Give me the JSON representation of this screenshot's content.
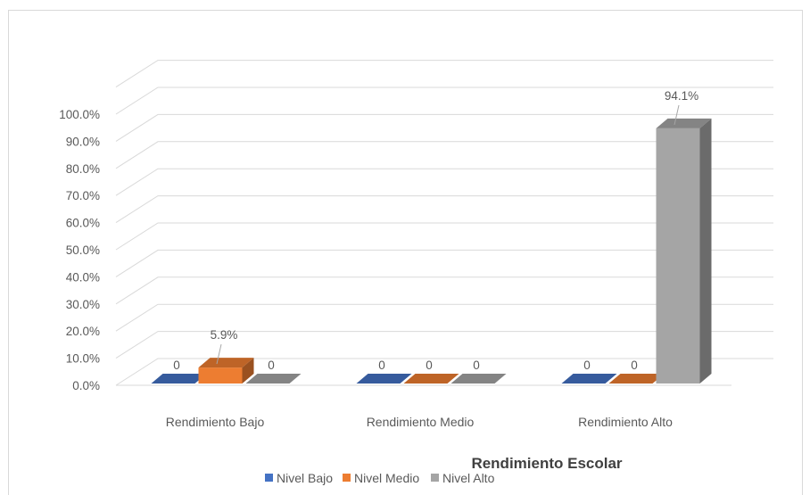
{
  "chart_data": {
    "type": "bar",
    "categories": [
      "Rendimiento Bajo",
      "Rendimiento Medio",
      "Rendimiento Alto"
    ],
    "series": [
      {
        "name": "Nivel Bajo",
        "values": [
          0,
          0,
          0
        ],
        "labels": [
          "0",
          "0",
          "0"
        ],
        "color": "#4472C4"
      },
      {
        "name": "Nivel Medio",
        "values": [
          5.9,
          0,
          0
        ],
        "labels": [
          "5.9%",
          "0",
          "0"
        ],
        "color": "#ED7D31"
      },
      {
        "name": "Nivel Alto",
        "values": [
          0,
          0,
          94.1
        ],
        "labels": [
          "0",
          "0",
          "94.1%"
        ],
        "color": "#A5A5A5"
      }
    ],
    "y_ticks": [
      "0.0%",
      "10.0%",
      "20.0%",
      "30.0%",
      "40.0%",
      "50.0%",
      "60.0%",
      "70.0%",
      "80.0%",
      "90.0%",
      "100.0%"
    ],
    "ylim": [
      0,
      100
    ],
    "xlabel": "Rendimiento Escolar",
    "ylabel": "",
    "grid": true,
    "legend": "bottom",
    "three_d": true
  }
}
